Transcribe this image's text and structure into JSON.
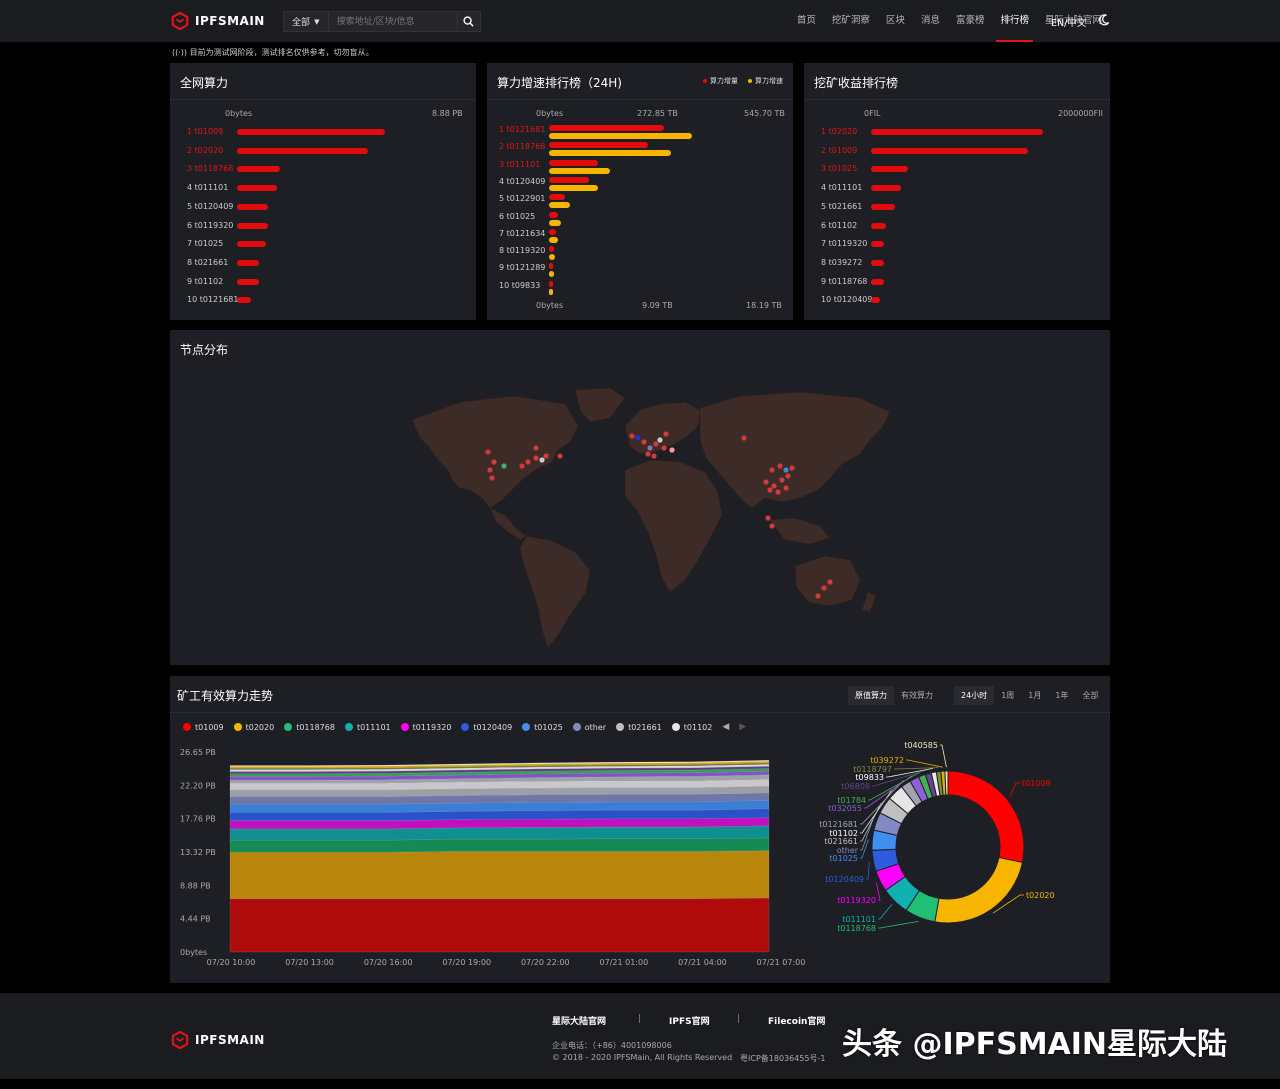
{
  "header": {
    "logo_text": "IPFSMAIN",
    "search": {
      "scope": "全部",
      "placeholder": "搜索地址/区块/信息"
    },
    "nav": [
      "首页",
      "挖矿洞察",
      "区块",
      "消息",
      "富豪榜",
      "排行榜",
      "星际大陆官网"
    ],
    "nav_active": 5,
    "lang_en": "EN",
    "lang_sep": "/",
    "lang_zh": "中文"
  },
  "notice": "目前为测试网阶段，测试排名仅供参考，切勿盲从。",
  "panel_power": {
    "title": "全网算力",
    "axis": [
      "0bytes",
      "8.88 PB"
    ],
    "ranks": [
      {
        "label": "1 t01009",
        "v": 0.82
      },
      {
        "label": "2 t02020",
        "v": 0.73
      },
      {
        "label": "3 t0118768",
        "v": 0.24
      },
      {
        "label": "4 t011101",
        "v": 0.22
      },
      {
        "label": "5 t0120409",
        "v": 0.17
      },
      {
        "label": "6 t0119320",
        "v": 0.17
      },
      {
        "label": "7 t01025",
        "v": 0.16
      },
      {
        "label": "8 t021661",
        "v": 0.12
      },
      {
        "label": "9 t01102",
        "v": 0.12
      },
      {
        "label": "10 t0121681",
        "v": 0.08
      }
    ]
  },
  "panel_growth": {
    "title": "算力增速排行榜（24H)",
    "legend": [
      "算力增量",
      "算力增速"
    ],
    "axis_top": [
      "0bytes",
      "272.85 TB",
      "545.70 TB"
    ],
    "axis_bottom": [
      "0bytes",
      "9.09 TB",
      "18.19 TB"
    ],
    "ranks": [
      {
        "label": "1 t0121681",
        "a": 0.49,
        "b": 0.61
      },
      {
        "label": "2 t0118768",
        "a": 0.42,
        "b": 0.52
      },
      {
        "label": "3 t011101",
        "a": 0.21,
        "b": 0.26
      },
      {
        "label": "4 t0120409",
        "a": 0.17,
        "b": 0.21
      },
      {
        "label": "5 t0122901",
        "a": 0.07,
        "b": 0.09
      },
      {
        "label": "6 t01025",
        "a": 0.04,
        "b": 0.05
      },
      {
        "label": "7 t0121634",
        "a": 0.03,
        "b": 0.04
      },
      {
        "label": "8 t0119320",
        "a": 0.02,
        "b": 0.025
      },
      {
        "label": "9 t0121289",
        "a": 0.015,
        "b": 0.02
      },
      {
        "label": "10 t09833",
        "a": 0.012,
        "b": 0.018
      }
    ]
  },
  "panel_reward": {
    "title": "挖矿收益排行榜",
    "axis": [
      "0FIL",
      "2000000FIl"
    ],
    "ranks": [
      {
        "label": "1 t02020",
        "v": 0.8
      },
      {
        "label": "2 t01009",
        "v": 0.73
      },
      {
        "label": "3 t01025",
        "v": 0.17
      },
      {
        "label": "4 t011101",
        "v": 0.14
      },
      {
        "label": "5 t021661",
        "v": 0.11
      },
      {
        "label": "6 t01102",
        "v": 0.07
      },
      {
        "label": "7 t0119320",
        "v": 0.06
      },
      {
        "label": "8 t039272",
        "v": 0.06
      },
      {
        "label": "9 t0118768",
        "v": 0.06
      },
      {
        "label": "10 t0120409",
        "v": 0.04
      }
    ]
  },
  "panel_map": {
    "title": "节点分布"
  },
  "panel_trend": {
    "title": "矿工有效算力走势",
    "mode_tabs": [
      "原值算力",
      "有效算力"
    ],
    "mode_active": 0,
    "range_tabs": [
      "24小时",
      "1周",
      "1月",
      "1年",
      "全部"
    ],
    "range_active": 0
  },
  "chart_data": [
    {
      "type": "area",
      "y_ticks": [
        "26.65 PB",
        "22.20 PB",
        "17.76 PB",
        "13.32 PB",
        "8.88 PB",
        "4.44 PB",
        "0bytes"
      ],
      "ylim": [
        0,
        26.65
      ],
      "x": [
        "07/20 10:00",
        "07/20 13:00",
        "07/20 16:00",
        "07/20 19:00",
        "07/20 22:00",
        "07/21 01:00",
        "07/21 04:00",
        "07/21 07:00"
      ],
      "legend": [
        "t01009",
        "t02020",
        "t0118768",
        "t011101",
        "t0119320",
        "t0120409",
        "t01025",
        "other",
        "t021661",
        "t01102"
      ],
      "series": [
        {
          "name": "t01009",
          "color": "#b00b0b",
          "values": [
            7.1,
            7.1,
            7.1,
            7.1,
            7.1,
            7.1,
            7.1,
            7.2
          ]
        },
        {
          "name": "t02020",
          "color": "#b8860b",
          "values": [
            6.2,
            6.2,
            6.2,
            6.3,
            6.3,
            6.3,
            6.3,
            6.3
          ]
        },
        {
          "name": "t0118768",
          "color": "#158a57",
          "values": [
            1.6,
            1.6,
            1.6,
            1.65,
            1.65,
            1.7,
            1.7,
            1.7
          ]
        },
        {
          "name": "t011101",
          "color": "#0f8f8f",
          "values": [
            1.5,
            1.5,
            1.5,
            1.5,
            1.55,
            1.55,
            1.55,
            1.6
          ]
        },
        {
          "name": "t0119320",
          "color": "#c010c0",
          "values": [
            1.1,
            1.1,
            1.1,
            1.1,
            1.1,
            1.1,
            1.1,
            1.1
          ]
        },
        {
          "name": "t0120409",
          "color": "#2952c9",
          "values": [
            1.1,
            1.1,
            1.1,
            1.1,
            1.15,
            1.15,
            1.15,
            1.2
          ]
        },
        {
          "name": "t01025",
          "color": "#3a7ed6",
          "values": [
            1.1,
            1.1,
            1.1,
            1.1,
            1.1,
            1.1,
            1.1,
            1.1
          ]
        },
        {
          "name": "other",
          "color": "#6f76a8",
          "values": [
            1.0,
            1.0,
            1.0,
            1.0,
            1.0,
            1.0,
            1.0,
            1.0
          ]
        },
        {
          "name": "t021661",
          "color": "#9e9ea6",
          "values": [
            0.9,
            0.9,
            0.9,
            0.9,
            0.9,
            0.9,
            0.9,
            0.9
          ]
        },
        {
          "name": "t01102",
          "color": "#c8c8cc",
          "values": [
            0.9,
            0.9,
            0.9,
            0.9,
            0.9,
            0.9,
            0.9,
            0.9
          ]
        },
        {
          "name": "t0121681",
          "color": "#a0a0a8",
          "values": [
            0.4,
            0.4,
            0.45,
            0.45,
            0.5,
            0.55,
            0.6,
            0.6
          ]
        },
        {
          "name": "t032055",
          "color": "#7f56c6",
          "values": [
            0.5,
            0.5,
            0.5,
            0.5,
            0.5,
            0.5,
            0.5,
            0.5
          ]
        },
        {
          "name": "t01784",
          "color": "#37a04a",
          "values": [
            0.35,
            0.35,
            0.35,
            0.35,
            0.35,
            0.35,
            0.35,
            0.35
          ]
        },
        {
          "name": "t06808",
          "color": "#5b3f86",
          "values": [
            0.3,
            0.3,
            0.3,
            0.3,
            0.3,
            0.3,
            0.3,
            0.3
          ]
        },
        {
          "name": "t09833",
          "color": "#d9d9d9",
          "values": [
            0.25,
            0.25,
            0.25,
            0.25,
            0.25,
            0.25,
            0.25,
            0.25
          ]
        },
        {
          "name": "t0118797",
          "color": "#6c7b3a",
          "values": [
            0.2,
            0.2,
            0.2,
            0.2,
            0.2,
            0.2,
            0.2,
            0.2
          ]
        },
        {
          "name": "t039272",
          "color": "#d9a400",
          "values": [
            0.2,
            0.2,
            0.2,
            0.2,
            0.2,
            0.2,
            0.2,
            0.2
          ]
        },
        {
          "name": "t040585",
          "color": "#efe0c0",
          "values": [
            0.15,
            0.15,
            0.15,
            0.15,
            0.15,
            0.15,
            0.15,
            0.15
          ]
        }
      ]
    },
    {
      "type": "pie",
      "categories": [
        "t01009",
        "t02020",
        "t0118768",
        "t011101",
        "t0119320",
        "t0120409",
        "t01025",
        "other",
        "t021661",
        "t01102",
        "t0121681",
        "t032055",
        "t01784",
        "t06808",
        "t09833",
        "t0118797",
        "t039272",
        "t040585"
      ],
      "values": [
        26.5,
        23.0,
        6.1,
        5.7,
        4.2,
        4.2,
        4.0,
        3.6,
        3.4,
        3.3,
        2.0,
        1.9,
        1.4,
        1.2,
        1.0,
        0.9,
        0.8,
        0.6
      ],
      "colors": [
        "#ff0000",
        "#f7b500",
        "#1fbf75",
        "#10b0b0",
        "#ff00ff",
        "#2f5be0",
        "#3f8ff0",
        "#8288c4",
        "#bfbfbf",
        "#e5e5e5",
        "#a3a3b0",
        "#8f5fdc",
        "#3fb34f",
        "#62448f",
        "#eaeaea",
        "#7a8a3f",
        "#e0b000",
        "#f3e6c8"
      ]
    }
  ],
  "footer": {
    "logo_text": "IPFSMAIN",
    "links": [
      "星际大陆官网",
      "IPFS官网",
      "Filecoin官网"
    ],
    "link_sep": "|",
    "phone": "企业电话：（+86）4001098006",
    "copyright": "© 2018 - 2020 IPFSMain, All Rights Reserved",
    "icp": "粤ICP备18036455号-1"
  },
  "watermark": "头条 @IPFSMAIN星际大陆"
}
